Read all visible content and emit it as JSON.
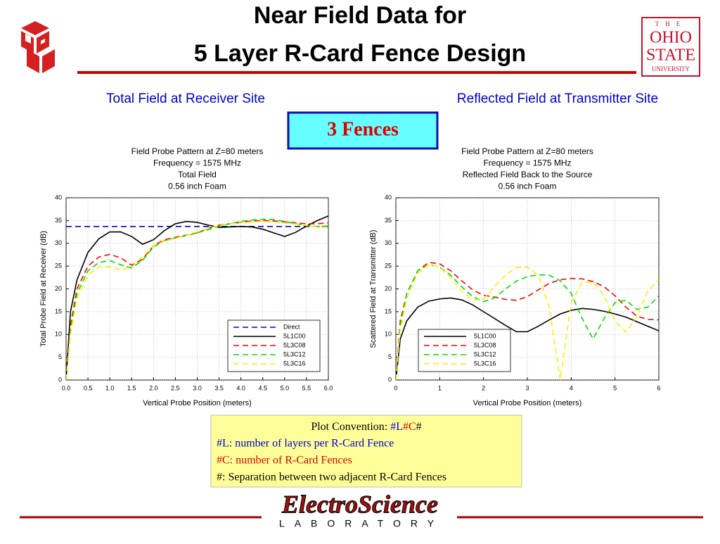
{
  "slide": {
    "title": [
      "Near Field Data for",
      "5 Layer R-Card Fence Design"
    ],
    "left_heading": "Total Field at Receiver Site",
    "right_heading": "Reflected Field at Transmitter Site",
    "fences": "3 Fences",
    "convention": {
      "title": "Plot Convention:",
      "code": [
        "#L",
        "#C",
        "#"
      ],
      "lines": [
        "#L: number of layers per R-Card Fence",
        "#C: number of R-Card Fences",
        "#: Separation between two adjacent R-Card Fences"
      ]
    },
    "osu_logo": [
      "THE",
      "OHIO",
      "STATE",
      "UNIVERSITY"
    ],
    "esl_logo": [
      "ElectroScience",
      "LABORATORY"
    ]
  },
  "chart_data": [
    {
      "type": "line",
      "title": [
        "Field Probe Pattern at Z=80 meters",
        "Frequency = 1575 MHz",
        "Total Field",
        "0.56 inch Foam"
      ],
      "x_label": "Vertical Probe Position (meters)",
      "y_label": "Total Probe Field at Receiver (dB)",
      "x": [
        0,
        0.1,
        0.25,
        0.5,
        0.75,
        1,
        1.25,
        1.5,
        1.75,
        2,
        2.25,
        2.5,
        2.75,
        3,
        3.25,
        3.5,
        3.75,
        4,
        4.25,
        4.5,
        4.75,
        5,
        5.25,
        5.5,
        5.75,
        6
      ],
      "series": [
        {
          "name": "Direct",
          "color": "#0000cc",
          "style": "dashed",
          "values": [
            33.7,
            33.7,
            33.7,
            33.7,
            33.7,
            33.7,
            33.7,
            33.7,
            33.7,
            33.7,
            33.7,
            33.7,
            33.7,
            33.7,
            33.7,
            33.7,
            33.7,
            33.7,
            33.7,
            33.7,
            33.7,
            33.7,
            33.7,
            33.7,
            33.7,
            33.7
          ]
        },
        {
          "name": "5L1C00",
          "color": "#000000",
          "style": "solid",
          "values": [
            0,
            15,
            22,
            28,
            31,
            32.5,
            32.5,
            31.5,
            29.8,
            30.8,
            32.8,
            34.3,
            34.8,
            34.6,
            34,
            33.5,
            33.6,
            33.7,
            33.6,
            33.1,
            32.3,
            31.5,
            32.4,
            33.8,
            35,
            36
          ]
        },
        {
          "name": "5L3C08",
          "color": "#ff0000",
          "style": "dashed",
          "values": [
            0,
            12,
            20,
            25,
            27,
            27.6,
            26.8,
            25.2,
            26.5,
            29.5,
            30.8,
            31.3,
            31.8,
            32.3,
            33.3,
            34,
            34.3,
            34.6,
            34.9,
            35,
            34.9,
            34.7,
            34.5,
            34.3,
            34.3,
            34.5
          ]
        },
        {
          "name": "5L3C12",
          "color": "#00dd00",
          "style": "dashed",
          "values": [
            0,
            11,
            19,
            24,
            25.8,
            26.2,
            25.3,
            24.6,
            26.3,
            29.2,
            30.6,
            31.2,
            31.7,
            32.3,
            33,
            33.8,
            34.3,
            34.8,
            35.1,
            35.3,
            35.2,
            34.8,
            34.3,
            33.9,
            33.7,
            33.8
          ]
        },
        {
          "name": "5L3C16",
          "color": "#ffee00",
          "style": "dashed",
          "values": [
            0,
            10,
            18,
            23,
            24.8,
            24.8,
            24.2,
            24.8,
            27,
            29.5,
            30.5,
            31.1,
            31.7,
            32.5,
            33.3,
            33.9,
            34.3,
            34.5,
            34.7,
            34.8,
            34.7,
            34.5,
            34.2,
            33.9,
            33.6,
            33.5
          ]
        }
      ],
      "xlim": [
        0,
        6
      ],
      "xticks": [
        {
          "value": 0,
          "label": "0.0"
        },
        0.5,
        {
          "value": 1,
          "label": "1.0"
        },
        1.5,
        {
          "value": 2,
          "label": "2.0"
        },
        2.5,
        {
          "value": 3,
          "label": "3.0"
        },
        3.5,
        {
          "value": 4,
          "label": "4.0"
        },
        4.5,
        {
          "value": 5,
          "label": "5.0"
        },
        5.5,
        {
          "value": 6,
          "label": "6.0"
        }
      ],
      "ylim": [
        0,
        40
      ],
      "yticks": [
        0,
        5,
        10,
        15,
        20,
        25,
        30,
        35,
        40
      ],
      "grid": true,
      "legend": "lower right"
    },
    {
      "type": "line",
      "title": [
        "Field Probe Pattern at Z=80 meters",
        "Frequency = 1575 MHz",
        "Reflected Field Back to the Source",
        "0.56 inch Foam"
      ],
      "x_label": "Vertical Probe Position (meters)",
      "y_label": "Scattered Field at Transmitter (dB)",
      "x": [
        0,
        0.1,
        0.25,
        0.5,
        0.75,
        1,
        1.25,
        1.5,
        1.75,
        2,
        2.25,
        2.5,
        2.75,
        3,
        3.25,
        3.5,
        3.75,
        4,
        4.25,
        4.5,
        4.75,
        5,
        5.25,
        5.5,
        5.75,
        6
      ],
      "series": [
        {
          "name": "5L1C00",
          "color": "#000000",
          "style": "solid",
          "values": [
            0,
            9,
            13,
            16,
            17.3,
            17.8,
            18,
            17.6,
            16.5,
            15,
            13.5,
            12,
            10.6,
            10.6,
            11.8,
            13.2,
            14.5,
            15.3,
            15.7,
            15.5,
            15.1,
            14.5,
            13.8,
            12.8,
            11.8,
            10.8
          ]
        },
        {
          "name": "5L3C08",
          "color": "#ff0000",
          "style": "dashed",
          "values": [
            0,
            13,
            19,
            24,
            25.8,
            25.5,
            24,
            21.8,
            19.8,
            18.6,
            18.2,
            17.7,
            17.5,
            18.3,
            19.8,
            21.2,
            22,
            22.3,
            22.2,
            21.6,
            20.5,
            18.5,
            16,
            14,
            13.3,
            13.2
          ]
        },
        {
          "name": "5L3C12",
          "color": "#00dd00",
          "style": "dashed",
          "values": [
            0,
            12,
            19,
            24,
            25.3,
            24.8,
            23,
            20.5,
            18.3,
            17.2,
            18,
            20,
            21.7,
            22.7,
            23.1,
            23,
            21.8,
            19,
            13.5,
            9,
            13.5,
            17,
            17.5,
            15.5,
            16,
            18.5
          ]
        },
        {
          "name": "5L3C16",
          "color": "#ffee00",
          "style": "dashed",
          "values": [
            0,
            11,
            18,
            23.5,
            25.3,
            24.8,
            22.5,
            19.5,
            17.5,
            17.8,
            20.5,
            23,
            24.7,
            24.8,
            23,
            16,
            0,
            17,
            21.5,
            21.5,
            18.5,
            13,
            10.5,
            14,
            19.5,
            22
          ]
        }
      ],
      "xlim": [
        0,
        6
      ],
      "xticks": [
        0,
        1,
        2,
        3,
        4,
        5,
        6
      ],
      "ylim": [
        0,
        40
      ],
      "yticks": [
        0,
        5,
        10,
        15,
        20,
        25,
        30,
        35,
        40
      ],
      "grid": true,
      "legend": "lower left"
    }
  ]
}
